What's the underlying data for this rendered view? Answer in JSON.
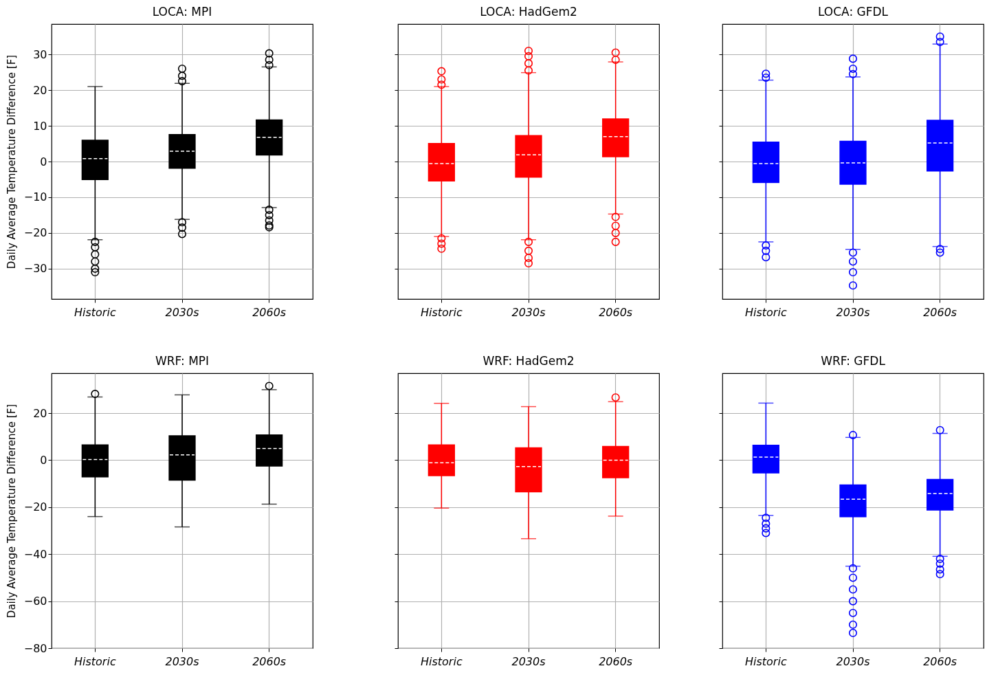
{
  "chart_data": [
    {
      "type": "box",
      "title": "LOCA: MPI",
      "ylabel": "Daily Average Temperature Difference [F]",
      "categories": [
        "Historic",
        "2030s",
        "2060s"
      ],
      "ylim": [
        -38.5,
        38.5
      ],
      "yticks": [
        -30,
        -20,
        -10,
        0,
        10,
        20,
        30
      ],
      "grid": true,
      "marker": "circle",
      "series": [
        {
          "color": "#000000",
          "boxes": [
            {
              "low": -21.9,
              "q1": -5.2,
              "median": 0.8,
              "q3": 6.1,
              "high": 21.0,
              "outliers": [
                -22.5,
                -24,
                -26,
                -28,
                -30,
                -31
              ]
            },
            {
              "low": -16.2,
              "q1": -2.0,
              "median": 2.9,
              "q3": 7.7,
              "high": 21.9,
              "outliers": [
                22.5,
                24,
                26,
                -17,
                -18.5,
                -20.3
              ]
            },
            {
              "low": -12.9,
              "q1": 1.7,
              "median": 6.8,
              "q3": 11.8,
              "high": 26.5,
              "outliers": [
                27,
                28.5,
                30.3,
                -13.5,
                -15,
                -16.5,
                -17.9,
                -18.4
              ]
            }
          ]
        }
      ]
    },
    {
      "type": "box",
      "title": "LOCA: HadGem2",
      "categories": [
        "Historic",
        "2030s",
        "2060s"
      ],
      "ylim": [
        -38.5,
        38.5
      ],
      "yticks": [
        -30,
        -20,
        -10,
        0,
        10,
        20,
        30
      ],
      "grid": true,
      "tick_labels": "x",
      "marker": "circle",
      "series": [
        {
          "color": "#ff0000",
          "boxes": [
            {
              "low": -21.0,
              "q1": -5.6,
              "median": -0.6,
              "q3": 5.2,
              "high": 21.0,
              "outliers": [
                21.5,
                23,
                25.3,
                -21.5,
                -23,
                -24.4
              ]
            },
            {
              "low": -21.9,
              "q1": -4.5,
              "median": 1.9,
              "q3": 7.4,
              "high": 24.9,
              "outliers": [
                25.5,
                27.5,
                29.5,
                31,
                -22.5,
                -25,
                -27,
                -28.5
              ]
            },
            {
              "low": -14.7,
              "q1": 1.2,
              "median": 7.0,
              "q3": 12.1,
              "high": 27.9,
              "outliers": [
                28.5,
                30.5,
                -15.5,
                -18,
                -20,
                -22.5
              ]
            }
          ]
        }
      ]
    },
    {
      "type": "box",
      "title": "LOCA: GFDL",
      "categories": [
        "Historic",
        "2030s",
        "2060s"
      ],
      "ylim": [
        -38.5,
        38.5
      ],
      "yticks": [
        -30,
        -20,
        -10,
        0,
        10,
        20,
        30
      ],
      "grid": true,
      "tick_labels": "x",
      "marker": "circle",
      "series": [
        {
          "color": "#0000ff",
          "boxes": [
            {
              "low": -22.5,
              "q1": -6.0,
              "median": -0.6,
              "q3": 5.6,
              "high": 22.8,
              "outliers": [
                23.5,
                24.6,
                -23.5,
                -25,
                -26.8
              ]
            },
            {
              "low": -24.6,
              "q1": -6.5,
              "median": -0.4,
              "q3": 5.8,
              "high": 23.7,
              "outliers": [
                24.5,
                26,
                28.8,
                -25.5,
                -28,
                -31,
                -34.7
              ]
            },
            {
              "low": -23.8,
              "q1": -2.8,
              "median": 5.2,
              "q3": 11.7,
              "high": 32.9,
              "outliers": [
                33.5,
                35,
                -24.5,
                -25.5
              ]
            }
          ]
        }
      ]
    },
    {
      "type": "box",
      "title": "WRF: MPI",
      "ylabel": "Daily Average Temperature Difference [F]",
      "categories": [
        "Historic",
        "2030s",
        "2060s"
      ],
      "ylim": [
        -80,
        37
      ],
      "yticks": [
        -80,
        -60,
        -40,
        -20,
        0,
        20
      ],
      "grid": true,
      "marker": "circle",
      "series": [
        {
          "color": "#000000",
          "boxes": [
            {
              "low": -24.0,
              "q1": -7.3,
              "median": 0.3,
              "q3": 6.7,
              "high": 26.9,
              "outliers": [
                28.2
              ]
            },
            {
              "low": -28.4,
              "q1": -8.7,
              "median": 2.3,
              "q3": 10.6,
              "high": 27.8
            },
            {
              "low": -18.7,
              "q1": -2.7,
              "median": 5.0,
              "q3": 11.0,
              "high": 30.0,
              "outliers": [
                31.6
              ]
            }
          ]
        }
      ]
    },
    {
      "type": "box",
      "title": "WRF: HadGem2",
      "categories": [
        "Historic",
        "2030s",
        "2060s"
      ],
      "ylim": [
        -80,
        37
      ],
      "yticks": [
        -80,
        -60,
        -40,
        -20,
        0,
        20
      ],
      "grid": true,
      "tick_labels": "x",
      "marker": "circle",
      "series": [
        {
          "color": "#ff0000",
          "boxes": [
            {
              "low": -20.4,
              "q1": -6.8,
              "median": -1.1,
              "q3": 6.7,
              "high": 24.2
            },
            {
              "low": -33.4,
              "q1": -13.7,
              "median": -2.7,
              "q3": 5.5,
              "high": 22.8
            },
            {
              "low": -23.8,
              "q1": -7.7,
              "median": 0.0,
              "q3": 6.1,
              "high": 24.9,
              "outliers": [
                26.7
              ]
            }
          ]
        }
      ]
    },
    {
      "type": "box",
      "title": "WRF: GFDL",
      "categories": [
        "Historic",
        "2030s",
        "2060s"
      ],
      "ylim": [
        -80,
        37
      ],
      "yticks": [
        -80,
        -60,
        -40,
        -20,
        0,
        20
      ],
      "grid": true,
      "tick_labels": "x",
      "marker": "circle",
      "series": [
        {
          "color": "#0000ff",
          "boxes": [
            {
              "low": -23.5,
              "q1": -5.6,
              "median": 1.3,
              "q3": 6.6,
              "high": 24.3,
              "outliers": [
                -24.5,
                -27,
                -29,
                -31
              ]
            },
            {
              "low": -45.1,
              "q1": -24.3,
              "median": -16.6,
              "q3": -10.3,
              "high": 9.7,
              "outliers": [
                10.7,
                -46,
                -50,
                -55,
                -60,
                -65,
                -70,
                -73.5
              ]
            },
            {
              "low": -40.9,
              "q1": -21.4,
              "median": -14.2,
              "q3": -8.0,
              "high": 11.4,
              "outliers": [
                12.8,
                -42,
                -44,
                -46.5,
                -48.5
              ]
            }
          ]
        }
      ]
    }
  ]
}
